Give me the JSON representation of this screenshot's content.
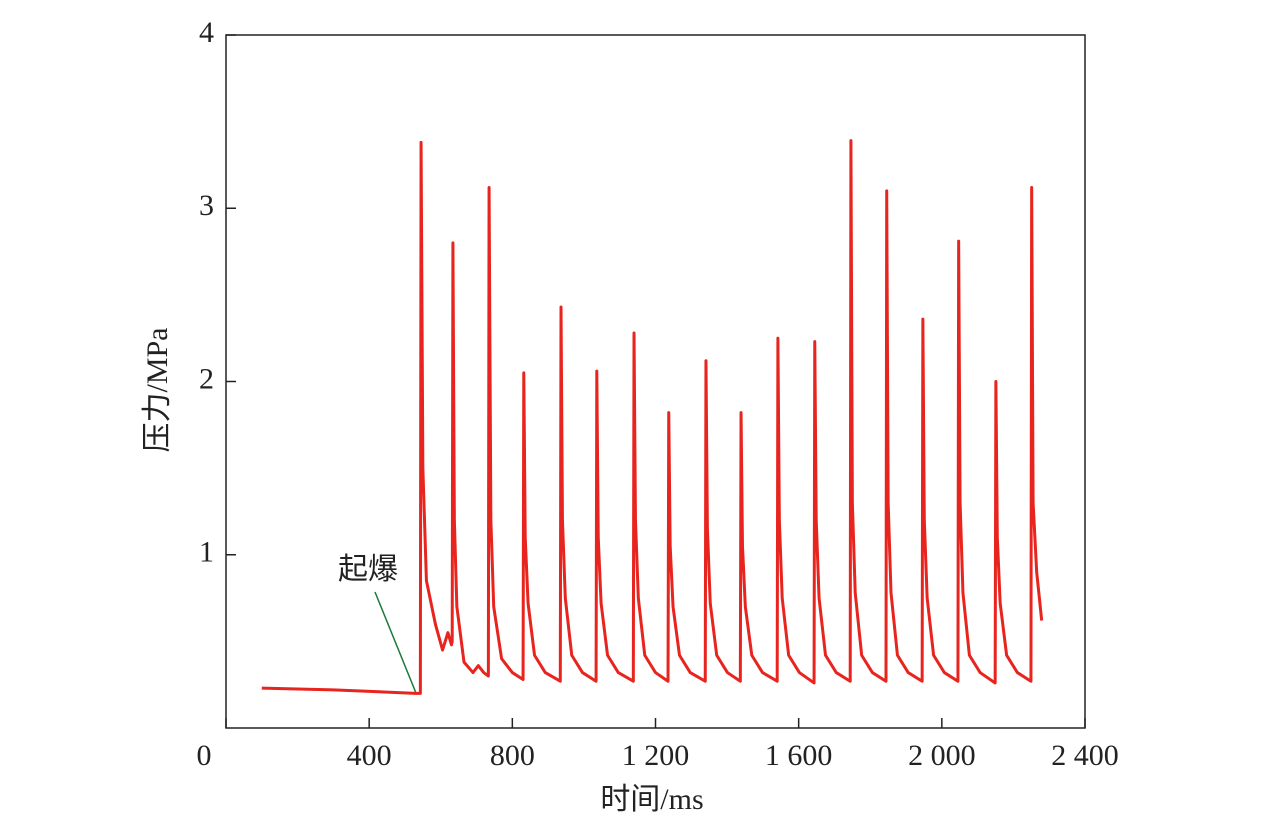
{
  "chart_data": {
    "type": "line",
    "xlabel": "时间/ms",
    "ylabel": "压力/MPa",
    "annotation": "起爆",
    "xlim": [
      0,
      2400
    ],
    "ylim": [
      0,
      4
    ],
    "xticks": [
      0,
      400,
      800,
      {
        "value": 1200,
        "label": "1 200"
      },
      {
        "value": 1600,
        "label": "1 600"
      },
      {
        "value": 2000,
        "label": "2 000"
      },
      {
        "value": 2400,
        "label": "2 400"
      }
    ],
    "yticks": [
      1,
      2,
      3,
      4
    ],
    "grid": false,
    "series": [
      {
        "color": "#e8241e",
        "x": [
          100,
          300,
          530,
          543,
          545,
          550,
          560,
          585,
          605,
          620,
          630,
          632,
          634,
          638,
          645,
          665,
          690,
          705,
          720,
          733,
          735,
          740,
          748,
          770,
          800,
          830,
          832,
          836,
          844,
          862,
          892,
          934,
          936,
          940,
          948,
          966,
          996,
          1034,
          1036,
          1040,
          1048,
          1066,
          1096,
          1138,
          1140,
          1144,
          1152,
          1170,
          1200,
          1235,
          1237,
          1241,
          1249,
          1267,
          1297,
          1339,
          1341,
          1345,
          1353,
          1371,
          1401,
          1437,
          1439,
          1443,
          1451,
          1469,
          1499,
          1540,
          1542,
          1546,
          1554,
          1572,
          1602,
          1643,
          1645,
          1649,
          1657,
          1675,
          1705,
          1744,
          1746,
          1750,
          1758,
          1776,
          1806,
          1844,
          1846,
          1850,
          1858,
          1876,
          1906,
          1945,
          1947,
          1951,
          1959,
          1977,
          2007,
          2045,
          2047,
          2051,
          2059,
          2077,
          2107,
          2149,
          2151,
          2155,
          2163,
          2181,
          2211,
          2249,
          2251,
          2255,
          2265,
          2279
        ],
        "values": [
          0.23,
          0.22,
          0.2,
          0.2,
          3.38,
          1.5,
          0.85,
          0.6,
          0.45,
          0.55,
          0.48,
          0.5,
          2.8,
          1.2,
          0.7,
          0.38,
          0.32,
          0.36,
          0.32,
          0.3,
          3.12,
          1.2,
          0.7,
          0.4,
          0.32,
          0.28,
          2.05,
          1.1,
          0.72,
          0.42,
          0.32,
          0.27,
          2.43,
          1.2,
          0.75,
          0.42,
          0.32,
          0.27,
          2.06,
          1.1,
          0.72,
          0.42,
          0.32,
          0.27,
          2.28,
          1.2,
          0.75,
          0.42,
          0.32,
          0.27,
          1.82,
          1.05,
          0.7,
          0.42,
          0.32,
          0.27,
          2.12,
          1.15,
          0.72,
          0.42,
          0.32,
          0.27,
          1.82,
          1.05,
          0.7,
          0.42,
          0.32,
          0.27,
          2.25,
          1.2,
          0.75,
          0.42,
          0.32,
          0.26,
          2.23,
          1.2,
          0.75,
          0.42,
          0.32,
          0.27,
          3.39,
          1.3,
          0.78,
          0.42,
          0.32,
          0.27,
          3.1,
          1.3,
          0.78,
          0.42,
          0.32,
          0.27,
          2.36,
          1.2,
          0.75,
          0.42,
          0.32,
          0.27,
          2.81,
          1.3,
          0.78,
          0.42,
          0.32,
          0.26,
          2.0,
          1.1,
          0.72,
          0.42,
          0.32,
          0.27,
          3.12,
          1.3,
          0.9,
          0.62
        ]
      }
    ]
  }
}
